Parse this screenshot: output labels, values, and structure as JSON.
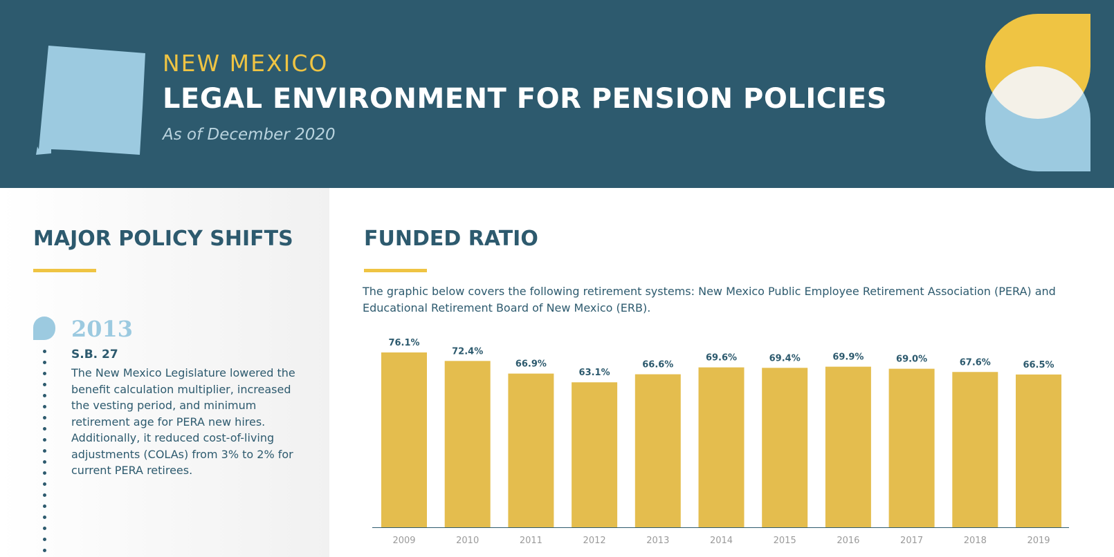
{
  "header": {
    "state": "NEW MEXICO",
    "title": "LEGAL ENVIRONMENT FOR PENSION POLICIES",
    "subtitle": "As of December 2020"
  },
  "policy_shifts": {
    "heading": "MAJOR POLICY SHIFTS",
    "events": [
      {
        "year": "2013",
        "bill": "S.B. 27",
        "description": "The New Mexico Legislature lowered the benefit calculation multiplier, increased the vesting period, and minimum retirement age for PERA new hires. Additionally, it reduced cost-of-living adjustments (COLAs) from 3% to 2% for current PERA retirees."
      }
    ]
  },
  "funded_ratio": {
    "heading": "FUNDED RATIO",
    "description": "The graphic below covers the following retirement systems: New Mexico Public Employee Retirement Association (PERA) and Educational Retirement Board of New Mexico (ERB)."
  },
  "colors": {
    "header_bg": "#2d5a6e",
    "accent_yellow": "#efc443",
    "bar_yellow": "#e4bd4e",
    "light_blue": "#9ccae0",
    "text_navy": "#2d5a6e"
  },
  "icons": {
    "state_outline": "new-mexico-map-icon",
    "brand_mark": "overlapping-leaf-logo-icon",
    "timeline_marker": "drop-marker-icon"
  },
  "chart_data": {
    "type": "bar",
    "categories": [
      "2009",
      "2010",
      "2011",
      "2012",
      "2013",
      "2014",
      "2015",
      "2016",
      "2017",
      "2018",
      "2019"
    ],
    "values": [
      76.1,
      72.4,
      66.9,
      63.1,
      66.6,
      69.6,
      69.4,
      69.9,
      69.0,
      67.6,
      66.5
    ],
    "labels": [
      "76.1%",
      "72.4%",
      "66.9%",
      "63.1%",
      "66.6%",
      "69.6%",
      "69.4%",
      "69.9%",
      "69.0%",
      "67.6%",
      "66.5%"
    ],
    "ylim": [
      0,
      76.1
    ],
    "grid": false,
    "legend": "none"
  }
}
